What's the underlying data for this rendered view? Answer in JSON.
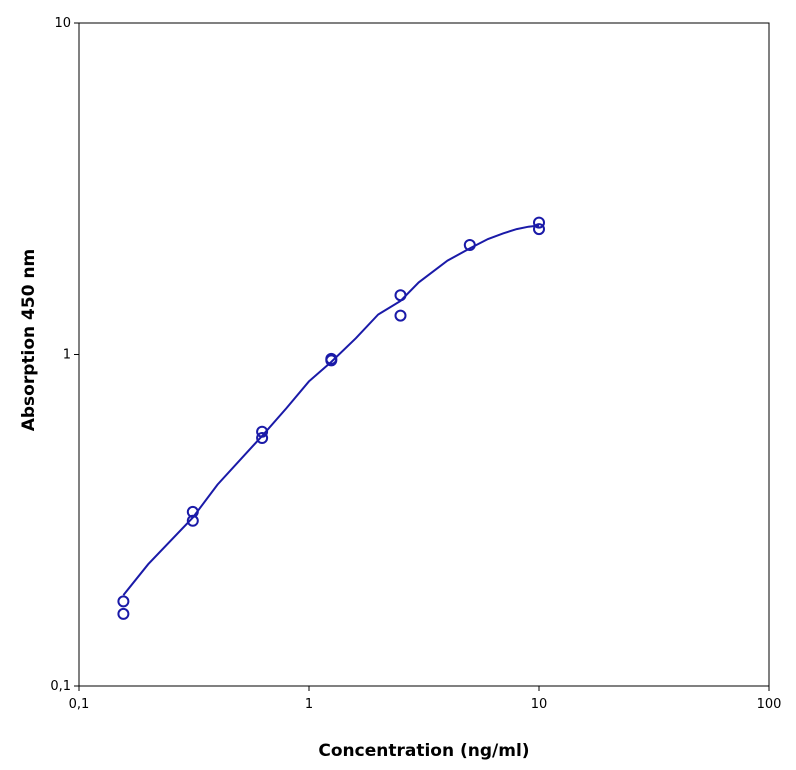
{
  "chart_data": {
    "type": "scatter",
    "title": "",
    "xlabel": "Concentration (ng/ml)",
    "ylabel": "Absorption 450 nm",
    "x_scale": "log",
    "y_scale": "log",
    "xlim": [
      0.1,
      100
    ],
    "ylim": [
      0.1,
      10
    ],
    "x_ticks": [
      {
        "value": 0.1,
        "label": "0,1"
      },
      {
        "value": 1,
        "label": "1"
      },
      {
        "value": 10,
        "label": "10"
      },
      {
        "value": 100,
        "label": "100"
      }
    ],
    "y_ticks": [
      {
        "value": 0.1,
        "label": "0,1"
      },
      {
        "value": 1,
        "label": "1"
      },
      {
        "value": 10,
        "label": "10"
      }
    ],
    "grid": false,
    "color": "#1a1aa8",
    "points": [
      {
        "x": 0.156,
        "y": 0.18
      },
      {
        "x": 0.156,
        "y": 0.165
      },
      {
        "x": 0.3125,
        "y": 0.335
      },
      {
        "x": 0.3125,
        "y": 0.315
      },
      {
        "x": 0.625,
        "y": 0.585
      },
      {
        "x": 0.625,
        "y": 0.56
      },
      {
        "x": 1.25,
        "y": 0.97
      },
      {
        "x": 1.25,
        "y": 0.96
      },
      {
        "x": 2.5,
        "y": 1.51
      },
      {
        "x": 2.5,
        "y": 1.31
      },
      {
        "x": 5,
        "y": 2.14
      },
      {
        "x": 10,
        "y": 2.5
      },
      {
        "x": 10,
        "y": 2.39
      }
    ],
    "fit_curve": [
      {
        "x": 0.156,
        "y": 0.188
      },
      {
        "x": 0.2,
        "y": 0.233
      },
      {
        "x": 0.3125,
        "y": 0.322
      },
      {
        "x": 0.4,
        "y": 0.405
      },
      {
        "x": 0.625,
        "y": 0.568
      },
      {
        "x": 0.8,
        "y": 0.69
      },
      {
        "x": 1.0,
        "y": 0.83
      },
      {
        "x": 1.25,
        "y": 0.95
      },
      {
        "x": 1.6,
        "y": 1.12
      },
      {
        "x": 2.0,
        "y": 1.32
      },
      {
        "x": 2.5,
        "y": 1.45
      },
      {
        "x": 3.0,
        "y": 1.65
      },
      {
        "x": 4.0,
        "y": 1.92
      },
      {
        "x": 5.0,
        "y": 2.09
      },
      {
        "x": 6.0,
        "y": 2.23
      },
      {
        "x": 7.0,
        "y": 2.32
      },
      {
        "x": 8.0,
        "y": 2.39
      },
      {
        "x": 9.0,
        "y": 2.43
      },
      {
        "x": 10.0,
        "y": 2.45
      }
    ]
  }
}
